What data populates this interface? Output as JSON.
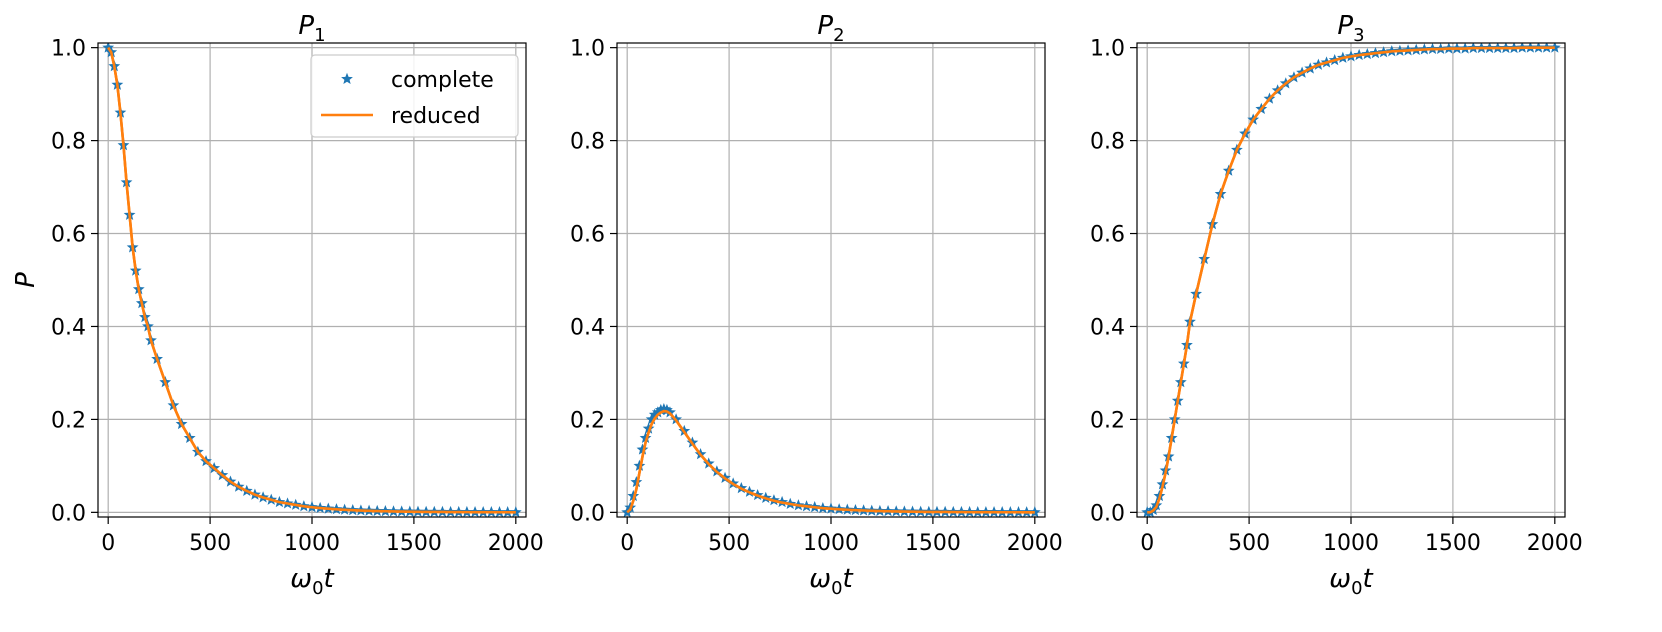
{
  "chart_data": [
    {
      "type": "line",
      "title": "P",
      "title_sub": "1",
      "xlabel": "ω",
      "xlabel_sub": "0",
      "xlabel_tail": "t",
      "ylabel": "P",
      "xlim": [
        -50,
        2050
      ],
      "ylim": [
        -0.01,
        1.01
      ],
      "xticks": [
        0,
        500,
        1000,
        1500,
        2000
      ],
      "yticks": [
        0.0,
        0.2,
        0.4,
        0.6,
        0.8,
        1.0
      ],
      "xtick_labels": [
        "0",
        "500",
        "1000",
        "1500",
        "2000"
      ],
      "ytick_labels": [
        "0.0",
        "0.2",
        "0.4",
        "0.6",
        "0.8",
        "1.0"
      ],
      "grid": true,
      "legend": {
        "placement": "upper right",
        "entries": [
          {
            "label": "complete",
            "marker": "star",
            "color": "#1f77b4"
          },
          {
            "label": "reduced",
            "marker": "line",
            "color": "#ff7f0e"
          }
        ]
      },
      "series": [
        {
          "name": "complete",
          "style": "markers",
          "color": "#1f77b4",
          "x": [
            0,
            15,
            30,
            45,
            60,
            75,
            90,
            105,
            120,
            135,
            150,
            165,
            180,
            195,
            210,
            240,
            280,
            320,
            360,
            400,
            440,
            480,
            520,
            560,
            600,
            640,
            680,
            720,
            760,
            800,
            840,
            880,
            920,
            960,
            1000,
            1040,
            1080,
            1120,
            1160,
            1200,
            1240,
            1280,
            1320,
            1360,
            1400,
            1440,
            1480,
            1520,
            1560,
            1600,
            1640,
            1680,
            1720,
            1760,
            1800,
            1840,
            1880,
            1920,
            1960,
            2000
          ],
          "y": [
            1.0,
            0.99,
            0.96,
            0.92,
            0.86,
            0.79,
            0.71,
            0.64,
            0.57,
            0.52,
            0.48,
            0.45,
            0.42,
            0.4,
            0.37,
            0.33,
            0.28,
            0.23,
            0.19,
            0.16,
            0.13,
            0.11,
            0.095,
            0.08,
            0.066,
            0.055,
            0.046,
            0.038,
            0.032,
            0.027,
            0.022,
            0.019,
            0.016,
            0.013,
            0.011,
            0.0093,
            0.0078,
            0.0066,
            0.0055,
            0.0046,
            0.0039,
            0.0033,
            0.0028,
            0.0024,
            0.002,
            0.0017,
            0.0014,
            0.0012,
            0.001,
            0.0009,
            0.0008,
            0.0007,
            0.0006,
            0.0005,
            0.0004,
            0.0003,
            0.0003,
            0.0002,
            0.0002,
            0.0001
          ]
        },
        {
          "name": "reduced",
          "style": "line",
          "color": "#ff7f0e",
          "x": [
            0,
            15,
            30,
            45,
            60,
            75,
            90,
            105,
            120,
            135,
            150,
            165,
            180,
            195,
            210,
            240,
            280,
            320,
            360,
            400,
            440,
            480,
            520,
            560,
            600,
            640,
            680,
            720,
            760,
            800,
            840,
            880,
            920,
            960,
            1000,
            1040,
            1080,
            1120,
            1160,
            1200,
            1240,
            1280,
            1320,
            1360,
            1400,
            1440,
            1480,
            1520,
            1560,
            1600,
            1640,
            1680,
            1720,
            1760,
            1800,
            1840,
            1880,
            1920,
            1960,
            2000
          ],
          "y": [
            1.0,
            0.99,
            0.96,
            0.92,
            0.86,
            0.79,
            0.71,
            0.64,
            0.57,
            0.52,
            0.48,
            0.45,
            0.42,
            0.4,
            0.37,
            0.33,
            0.28,
            0.23,
            0.19,
            0.16,
            0.13,
            0.11,
            0.095,
            0.08,
            0.066,
            0.055,
            0.046,
            0.038,
            0.032,
            0.027,
            0.022,
            0.019,
            0.016,
            0.013,
            0.011,
            0.0093,
            0.0078,
            0.0066,
            0.0055,
            0.0046,
            0.0039,
            0.0033,
            0.0028,
            0.0024,
            0.002,
            0.0017,
            0.0014,
            0.0012,
            0.001,
            0.0009,
            0.0008,
            0.0007,
            0.0006,
            0.0005,
            0.0004,
            0.0003,
            0.0003,
            0.0002,
            0.0002,
            0.0001
          ]
        }
      ]
    },
    {
      "type": "line",
      "title": "P",
      "title_sub": "2",
      "xlabel": "ω",
      "xlabel_sub": "0",
      "xlabel_tail": "t",
      "ylabel": "",
      "xlim": [
        -50,
        2050
      ],
      "ylim": [
        -0.01,
        1.01
      ],
      "xticks": [
        0,
        500,
        1000,
        1500,
        2000
      ],
      "yticks": [
        0.0,
        0.2,
        0.4,
        0.6,
        0.8,
        1.0
      ],
      "xtick_labels": [
        "0",
        "500",
        "1000",
        "1500",
        "2000"
      ],
      "ytick_labels": [
        "0.0",
        "0.2",
        "0.4",
        "0.6",
        "0.8",
        "1.0"
      ],
      "grid": true,
      "series": [
        {
          "name": "complete",
          "style": "markers",
          "color": "#1f77b4",
          "x": [
            0,
            15,
            30,
            45,
            60,
            75,
            90,
            105,
            120,
            135,
            150,
            165,
            180,
            195,
            210,
            240,
            280,
            320,
            360,
            400,
            440,
            480,
            520,
            560,
            600,
            640,
            680,
            720,
            760,
            800,
            840,
            880,
            920,
            960,
            1000,
            1040,
            1080,
            1120,
            1160,
            1200,
            1240,
            1280,
            1320,
            1360,
            1400,
            1440,
            1480,
            1520,
            1560,
            1600,
            1640,
            1680,
            1720,
            1760,
            1800,
            1840,
            1880,
            1920,
            1960,
            2000
          ],
          "y": [
            0.0,
            0.01,
            0.035,
            0.065,
            0.1,
            0.135,
            0.16,
            0.18,
            0.2,
            0.21,
            0.215,
            0.22,
            0.222,
            0.22,
            0.215,
            0.2,
            0.175,
            0.15,
            0.125,
            0.105,
            0.088,
            0.074,
            0.062,
            0.052,
            0.044,
            0.037,
            0.031,
            0.026,
            0.022,
            0.018,
            0.015,
            0.013,
            0.011,
            0.009,
            0.008,
            0.0066,
            0.0056,
            0.0047,
            0.004,
            0.0034,
            0.0028,
            0.0024,
            0.002,
            0.0017,
            0.0014,
            0.0012,
            0.001,
            0.0009,
            0.0008,
            0.0007,
            0.0006,
            0.0005,
            0.0004,
            0.0003,
            0.0003,
            0.0002,
            0.0002,
            0.0002,
            0.0001,
            0.0001
          ]
        },
        {
          "name": "reduced",
          "style": "line",
          "color": "#ff7f0e",
          "x": [
            0,
            15,
            30,
            45,
            60,
            75,
            90,
            105,
            120,
            135,
            150,
            165,
            180,
            195,
            210,
            240,
            280,
            320,
            360,
            400,
            440,
            480,
            520,
            560,
            600,
            640,
            680,
            720,
            760,
            800,
            840,
            880,
            920,
            960,
            1000,
            1040,
            1080,
            1120,
            1160,
            1200,
            1240,
            1280,
            1320,
            1360,
            1400,
            1440,
            1480,
            1520,
            1560,
            1600,
            1640,
            1680,
            1720,
            1760,
            1800,
            1840,
            1880,
            1920,
            1960,
            2000
          ],
          "y": [
            0.0,
            0.006,
            0.025,
            0.05,
            0.085,
            0.12,
            0.15,
            0.172,
            0.19,
            0.202,
            0.21,
            0.215,
            0.218,
            0.217,
            0.213,
            0.198,
            0.173,
            0.148,
            0.124,
            0.104,
            0.087,
            0.073,
            0.061,
            0.051,
            0.043,
            0.036,
            0.03,
            0.025,
            0.021,
            0.018,
            0.015,
            0.013,
            0.011,
            0.009,
            0.008,
            0.0066,
            0.0056,
            0.0047,
            0.004,
            0.0034,
            0.0028,
            0.0024,
            0.002,
            0.0017,
            0.0014,
            0.0012,
            0.001,
            0.0009,
            0.0008,
            0.0007,
            0.0006,
            0.0005,
            0.0004,
            0.0003,
            0.0003,
            0.0002,
            0.0002,
            0.0002,
            0.0001,
            0.0001
          ]
        }
      ]
    },
    {
      "type": "line",
      "title": "P",
      "title_sub": "3",
      "xlabel": "ω",
      "xlabel_sub": "0",
      "xlabel_tail": "t",
      "ylabel": "",
      "xlim": [
        -50,
        2050
      ],
      "ylim": [
        -0.01,
        1.01
      ],
      "xticks": [
        0,
        500,
        1000,
        1500,
        2000
      ],
      "yticks": [
        0.0,
        0.2,
        0.4,
        0.6,
        0.8,
        1.0
      ],
      "xtick_labels": [
        "0",
        "500",
        "1000",
        "1500",
        "2000"
      ],
      "ytick_labels": [
        "0.0",
        "0.2",
        "0.4",
        "0.6",
        "0.8",
        "1.0"
      ],
      "grid": true,
      "series": [
        {
          "name": "complete",
          "style": "markers",
          "color": "#1f77b4",
          "x": [
            0,
            15,
            30,
            45,
            60,
            75,
            90,
            105,
            120,
            135,
            150,
            165,
            180,
            195,
            210,
            240,
            280,
            320,
            360,
            400,
            440,
            480,
            520,
            560,
            600,
            640,
            680,
            720,
            760,
            800,
            840,
            880,
            920,
            960,
            1000,
            1040,
            1080,
            1120,
            1160,
            1200,
            1240,
            1280,
            1320,
            1360,
            1400,
            1440,
            1480,
            1520,
            1560,
            1600,
            1640,
            1680,
            1720,
            1760,
            1800,
            1840,
            1880,
            1920,
            1960,
            2000
          ],
          "y": [
            0.0,
            0.0,
            0.005,
            0.015,
            0.035,
            0.06,
            0.09,
            0.12,
            0.16,
            0.2,
            0.24,
            0.28,
            0.32,
            0.36,
            0.41,
            0.47,
            0.545,
            0.62,
            0.685,
            0.735,
            0.78,
            0.815,
            0.845,
            0.868,
            0.89,
            0.908,
            0.923,
            0.936,
            0.946,
            0.955,
            0.963,
            0.968,
            0.973,
            0.978,
            0.981,
            0.984,
            0.986,
            0.988,
            0.99,
            0.992,
            0.993,
            0.994,
            0.995,
            0.996,
            0.997,
            0.997,
            0.998,
            0.998,
            0.998,
            0.999,
            0.999,
            0.999,
            0.999,
            0.999,
            0.999,
            1.0,
            1.0,
            1.0,
            1.0,
            1.0
          ]
        },
        {
          "name": "reduced",
          "style": "line",
          "color": "#ff7f0e",
          "x": [
            0,
            15,
            30,
            45,
            60,
            75,
            90,
            105,
            120,
            135,
            150,
            165,
            180,
            195,
            210,
            240,
            280,
            320,
            360,
            400,
            440,
            480,
            520,
            560,
            600,
            640,
            680,
            720,
            760,
            800,
            840,
            880,
            920,
            960,
            1000,
            1040,
            1080,
            1120,
            1160,
            1200,
            1240,
            1280,
            1320,
            1360,
            1400,
            1440,
            1480,
            1520,
            1560,
            1600,
            1640,
            1680,
            1720,
            1760,
            1800,
            1840,
            1880,
            1920,
            1960,
            2000
          ],
          "y": [
            0.0,
            0.0,
            0.004,
            0.012,
            0.03,
            0.055,
            0.085,
            0.12,
            0.16,
            0.2,
            0.24,
            0.28,
            0.32,
            0.36,
            0.41,
            0.47,
            0.545,
            0.62,
            0.685,
            0.735,
            0.78,
            0.815,
            0.845,
            0.868,
            0.89,
            0.908,
            0.923,
            0.936,
            0.946,
            0.955,
            0.963,
            0.968,
            0.973,
            0.978,
            0.981,
            0.984,
            0.986,
            0.988,
            0.99,
            0.992,
            0.993,
            0.994,
            0.995,
            0.996,
            0.997,
            0.997,
            0.998,
            0.998,
            0.998,
            0.999,
            0.999,
            0.999,
            0.999,
            0.999,
            0.999,
            1.0,
            1.0,
            1.0,
            1.0,
            1.0
          ]
        }
      ]
    }
  ]
}
